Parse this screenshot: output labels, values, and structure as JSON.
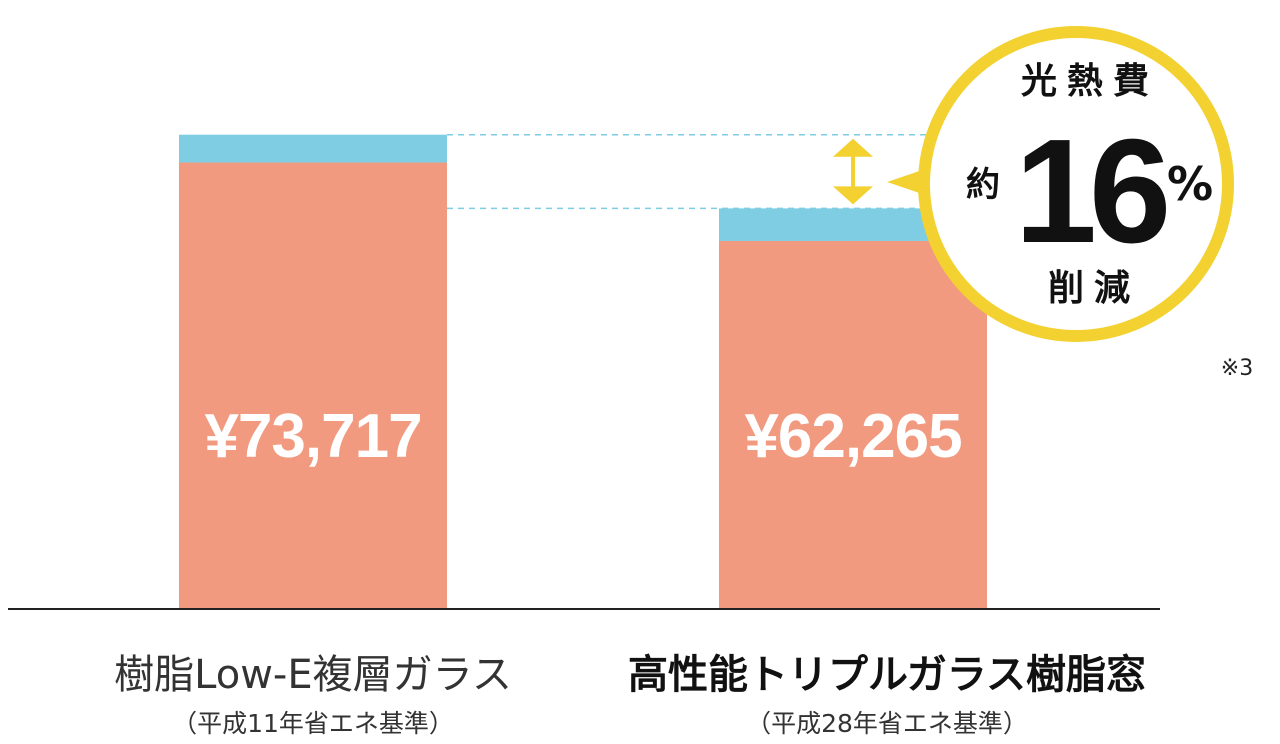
{
  "chart_data": {
    "type": "bar",
    "stacked": true,
    "categories": [
      {
        "label": "樹脂Low-E複層ガラス",
        "sublabel": "（平成11年省エネ基準）",
        "bold": false
      },
      {
        "label": "高性能トリプルガラス樹脂窓",
        "sublabel": "（平成28年省エネ基準）",
        "bold": true
      }
    ],
    "totals": [
      73717,
      62265
    ],
    "value_labels": [
      "¥73,717",
      "¥62,265"
    ],
    "series": [
      {
        "color": "#f29a80",
        "values": [
          69400,
          57200
        ]
      },
      {
        "color": "#7ecde2",
        "values": [
          4317,
          5065
        ]
      }
    ],
    "ylim": [
      0,
      76000
    ],
    "grid": false,
    "legend": "none",
    "annotation": {
      "line1": "光熱費",
      "prefix": "約",
      "number": "16",
      "unit": "%",
      "line3": "削減",
      "color": "#f2d130",
      "arrow_color": "#f2d130",
      "guide_color": "#7ecde2"
    },
    "note": "※3"
  }
}
